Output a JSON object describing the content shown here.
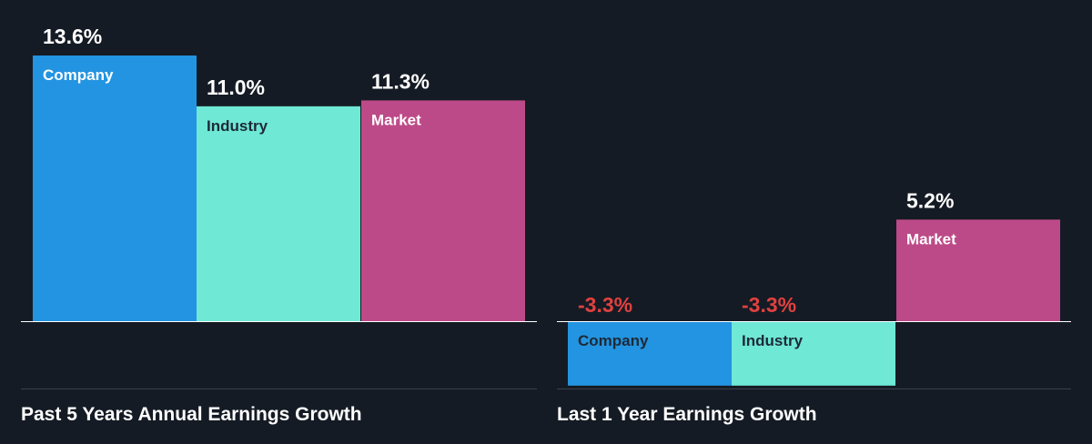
{
  "chart_data": [
    {
      "type": "bar",
      "title": "Past 5 Years Annual Earnings Growth",
      "categories": [
        "Company",
        "Industry",
        "Market"
      ],
      "values": [
        13.6,
        11.0,
        11.3
      ],
      "value_labels": [
        "13.6%",
        "11.0%",
        "11.3%"
      ],
      "ylim": [
        -4.8,
        13.6
      ],
      "colors": [
        "#2394e1",
        "#6fe8d6",
        "#bd4a88"
      ],
      "label_colors": [
        "#ffffff",
        "#1d2a36",
        "#ffffff"
      ],
      "value_label_colors": [
        "#ffffff",
        "#ffffff",
        "#ffffff"
      ]
    },
    {
      "type": "bar",
      "title": "Last 1 Year Earnings Growth",
      "categories": [
        "Company",
        "Industry",
        "Market"
      ],
      "values": [
        -3.3,
        -3.3,
        5.2
      ],
      "value_labels": [
        "-3.3%",
        "-3.3%",
        "5.2%"
      ],
      "ylim": [
        -3.3,
        5.2
      ],
      "colors": [
        "#2394e1",
        "#6fe8d6",
        "#bd4a88"
      ],
      "label_colors": [
        "#1d2a36",
        "#1d2a36",
        "#ffffff"
      ],
      "value_label_colors": [
        "#e0413f",
        "#e0413f",
        "#ffffff"
      ]
    }
  ]
}
